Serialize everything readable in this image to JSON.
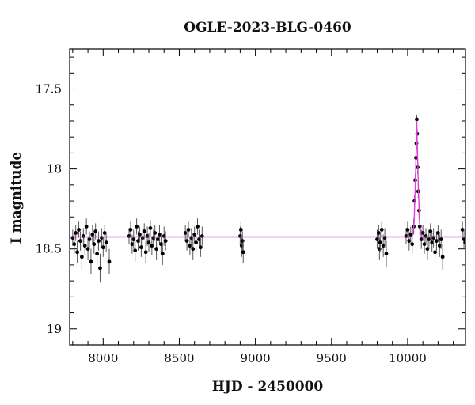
{
  "chart_data": {
    "type": "scatter",
    "title": "OGLE-2023-BLG-0460",
    "xlabel": "HJD - 2450000",
    "ylabel": "I magnitude",
    "xlim": [
      7780,
      10380
    ],
    "ylim": [
      19.1,
      17.25
    ],
    "y_inverted": true,
    "grid": false,
    "legend": "none",
    "x_ticks": [
      8000,
      8500,
      9000,
      9500,
      10000
    ],
    "x_tick_labels": [
      "8000",
      "8500",
      "9000",
      "9500",
      "10000"
    ],
    "y_ticks": [
      17.5,
      18,
      18.5,
      19
    ],
    "y_tick_labels": [
      "17.5",
      "18",
      "18.5",
      "19"
    ],
    "baseline_mag": 18.425,
    "colors": {
      "data": "#000000",
      "model": "#e040e0",
      "axes": "#000000"
    },
    "series": [
      {
        "points": [
          [
            7800,
            18.43,
            0.05
          ],
          [
            7810,
            18.47,
            0.06
          ],
          [
            7820,
            18.4,
            0.05
          ],
          [
            7830,
            18.52,
            0.07
          ],
          [
            7840,
            18.38,
            0.05
          ],
          [
            7850,
            18.45,
            0.06
          ],
          [
            7860,
            18.55,
            0.08
          ],
          [
            7870,
            18.42,
            0.05
          ],
          [
            7880,
            18.48,
            0.06
          ],
          [
            7890,
            18.36,
            0.05
          ],
          [
            7900,
            18.5,
            0.07
          ],
          [
            7910,
            18.44,
            0.05
          ],
          [
            7920,
            18.58,
            0.08
          ],
          [
            7930,
            18.41,
            0.06
          ],
          [
            7940,
            18.47,
            0.06
          ],
          [
            7950,
            18.39,
            0.05
          ],
          [
            7960,
            18.53,
            0.07
          ],
          [
            7970,
            18.45,
            0.06
          ],
          [
            7980,
            18.62,
            0.09
          ],
          [
            7990,
            18.43,
            0.06
          ],
          [
            8000,
            18.49,
            0.06
          ],
          [
            8010,
            18.4,
            0.05
          ],
          [
            8020,
            18.46,
            0.06
          ],
          [
            8040,
            18.58,
            0.08
          ],
          [
            8170,
            18.42,
            0.05
          ],
          [
            8180,
            18.38,
            0.05
          ],
          [
            8190,
            18.47,
            0.06
          ],
          [
            8200,
            18.44,
            0.06
          ],
          [
            8210,
            18.51,
            0.07
          ],
          [
            8220,
            18.36,
            0.05
          ],
          [
            8230,
            18.45,
            0.06
          ],
          [
            8240,
            18.41,
            0.05
          ],
          [
            8250,
            18.49,
            0.06
          ],
          [
            8260,
            18.43,
            0.06
          ],
          [
            8270,
            18.39,
            0.05
          ],
          [
            8280,
            18.52,
            0.07
          ],
          [
            8290,
            18.42,
            0.06
          ],
          [
            8300,
            18.46,
            0.06
          ],
          [
            8310,
            18.37,
            0.05
          ],
          [
            8320,
            18.48,
            0.06
          ],
          [
            8330,
            18.43,
            0.05
          ],
          [
            8340,
            18.4,
            0.05
          ],
          [
            8350,
            18.5,
            0.07
          ],
          [
            8360,
            18.44,
            0.06
          ],
          [
            8370,
            18.41,
            0.06
          ],
          [
            8380,
            18.47,
            0.06
          ],
          [
            8390,
            18.53,
            0.07
          ],
          [
            8400,
            18.42,
            0.06
          ],
          [
            8410,
            18.45,
            0.06
          ],
          [
            8540,
            18.4,
            0.05
          ],
          [
            8550,
            18.45,
            0.06
          ],
          [
            8560,
            18.38,
            0.05
          ],
          [
            8570,
            18.48,
            0.06
          ],
          [
            8580,
            18.43,
            0.06
          ],
          [
            8590,
            18.5,
            0.07
          ],
          [
            8600,
            18.41,
            0.05
          ],
          [
            8610,
            18.46,
            0.06
          ],
          [
            8620,
            18.36,
            0.05
          ],
          [
            8630,
            18.44,
            0.06
          ],
          [
            8640,
            18.49,
            0.06
          ],
          [
            8650,
            18.42,
            0.06
          ],
          [
            8900,
            18.42,
            0.06
          ],
          [
            8905,
            18.38,
            0.05
          ],
          [
            8910,
            18.48,
            0.07
          ],
          [
            8915,
            18.45,
            0.06
          ],
          [
            8920,
            18.52,
            0.07
          ],
          [
            9800,
            18.44,
            0.06
          ],
          [
            9810,
            18.4,
            0.05
          ],
          [
            9815,
            18.5,
            0.07
          ],
          [
            9820,
            18.46,
            0.06
          ],
          [
            9830,
            18.38,
            0.05
          ],
          [
            9840,
            18.48,
            0.07
          ],
          [
            9850,
            18.43,
            0.06
          ],
          [
            9860,
            18.53,
            0.08
          ],
          [
            9990,
            18.42,
            0.05
          ],
          [
            10000,
            18.38,
            0.05
          ],
          [
            10010,
            18.45,
            0.06
          ],
          [
            10020,
            18.41,
            0.05
          ],
          [
            10030,
            18.47,
            0.06
          ],
          [
            10040,
            18.36,
            0.05
          ],
          [
            10045,
            18.2,
            0.04
          ],
          [
            10050,
            18.07,
            0.04
          ],
          [
            10055,
            17.93,
            0.04
          ],
          [
            10058,
            17.84,
            0.03
          ],
          [
            10060,
            17.69,
            0.03
          ],
          [
            10063,
            17.78,
            0.03
          ],
          [
            10066,
            17.99,
            0.04
          ],
          [
            10070,
            18.14,
            0.04
          ],
          [
            10075,
            18.26,
            0.05
          ],
          [
            10080,
            18.36,
            0.05
          ],
          [
            10090,
            18.44,
            0.06
          ],
          [
            10100,
            18.4,
            0.05
          ],
          [
            10110,
            18.47,
            0.06
          ],
          [
            10120,
            18.42,
            0.05
          ],
          [
            10130,
            18.5,
            0.07
          ],
          [
            10140,
            18.44,
            0.06
          ],
          [
            10150,
            18.39,
            0.05
          ],
          [
            10160,
            18.46,
            0.06
          ],
          [
            10170,
            18.43,
            0.06
          ],
          [
            10180,
            18.52,
            0.07
          ],
          [
            10190,
            18.45,
            0.06
          ],
          [
            10200,
            18.4,
            0.05
          ],
          [
            10210,
            18.48,
            0.07
          ],
          [
            10220,
            18.44,
            0.06
          ],
          [
            10230,
            18.55,
            0.08
          ],
          [
            10360,
            18.38,
            0.05
          ],
          [
            10370,
            18.44,
            0.06
          ],
          [
            10378,
            18.46,
            0.06
          ]
        ]
      }
    ],
    "model": {
      "type": "line",
      "x": [
        7780,
        10030,
        10042,
        10050,
        10056,
        10060,
        10064,
        10070,
        10078,
        10090,
        10380
      ],
      "y": [
        18.425,
        18.425,
        18.35,
        18.12,
        17.88,
        17.7,
        17.86,
        18.1,
        18.33,
        18.425,
        18.425
      ]
    }
  }
}
